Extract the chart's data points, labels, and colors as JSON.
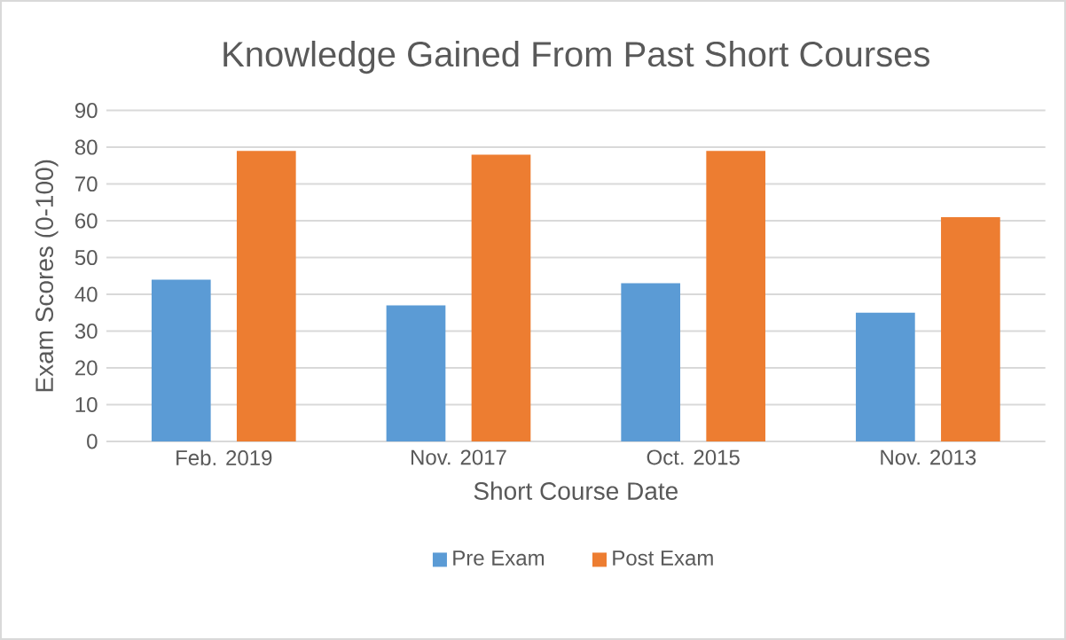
{
  "chart_data": {
    "type": "bar",
    "title": "Knowledge Gained From Past Short Courses",
    "xlabel": "Short Course Date",
    "ylabel": "Exam Scores (0-100)",
    "categories": [
      "Feb. 2019",
      "Nov. 2017",
      "Oct. 2015",
      "Nov. 2013"
    ],
    "series": [
      {
        "name": "Pre Exam",
        "color": "#5b9bd5",
        "values": [
          44,
          37,
          43,
          35
        ]
      },
      {
        "name": "Post Exam",
        "color": "#ed7d31",
        "values": [
          79,
          78,
          79,
          61
        ]
      }
    ],
    "ylim": [
      0,
      90
    ],
    "yticks": [
      0,
      10,
      20,
      30,
      40,
      50,
      60,
      70,
      80,
      90
    ],
    "grid": "y",
    "legend": "bottom"
  }
}
